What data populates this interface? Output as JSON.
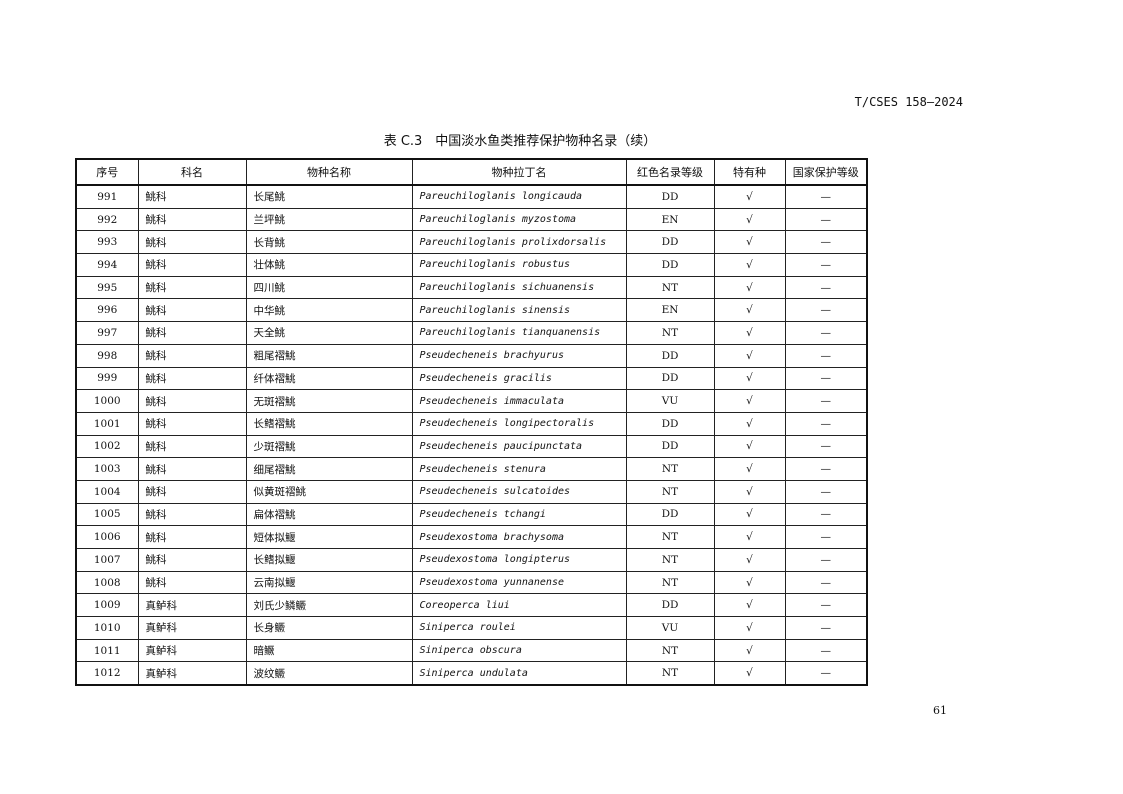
{
  "header": {
    "standard": "T/CSES 158—2024"
  },
  "table": {
    "title": "表 C.3　中国淡水鱼类推荐保护物种名录（续）",
    "columns": [
      "序号",
      "科名",
      "物种名称",
      "物种拉丁名",
      "红色名录等级",
      "特有种",
      "国家保护等级"
    ],
    "rows": [
      [
        "991",
        "鮡科",
        "长尾鮡",
        "Pareuchiloglanis longicauda",
        "DD",
        "√",
        "—"
      ],
      [
        "992",
        "鮡科",
        "兰坪鮡",
        "Pareuchiloglanis myzostoma",
        "EN",
        "√",
        "—"
      ],
      [
        "993",
        "鮡科",
        "长背鮡",
        "Pareuchiloglanis prolixdorsalis",
        "DD",
        "√",
        "—"
      ],
      [
        "994",
        "鮡科",
        "壮体鮡",
        "Pareuchiloglanis robustus",
        "DD",
        "√",
        "—"
      ],
      [
        "995",
        "鮡科",
        "四川鮡",
        "Pareuchiloglanis sichuanensis",
        "NT",
        "√",
        "—"
      ],
      [
        "996",
        "鮡科",
        "中华鮡",
        "Pareuchiloglanis sinensis",
        "EN",
        "√",
        "—"
      ],
      [
        "997",
        "鮡科",
        "天全鮡",
        "Pareuchiloglanis tianquanensis",
        "NT",
        "√",
        "—"
      ],
      [
        "998",
        "鮡科",
        "粗尾褶鮡",
        "Pseudecheneis brachyurus",
        "DD",
        "√",
        "—"
      ],
      [
        "999",
        "鮡科",
        "纤体褶鮡",
        "Pseudecheneis gracilis",
        "DD",
        "√",
        "—"
      ],
      [
        "1000",
        "鮡科",
        "无斑褶鮡",
        "Pseudecheneis immaculata",
        "VU",
        "√",
        "—"
      ],
      [
        "1001",
        "鮡科",
        "长鳍褶鮡",
        "Pseudecheneis longipectoralis",
        "DD",
        "√",
        "—"
      ],
      [
        "1002",
        "鮡科",
        "少斑褶鮡",
        "Pseudecheneis paucipunctata",
        "DD",
        "√",
        "—"
      ],
      [
        "1003",
        "鮡科",
        "细尾褶鮡",
        "Pseudecheneis stenura",
        "NT",
        "√",
        "—"
      ],
      [
        "1004",
        "鮡科",
        "似黄斑褶鮡",
        "Pseudecheneis sulcatoides",
        "NT",
        "√",
        "—"
      ],
      [
        "1005",
        "鮡科",
        "扁体褶鮡",
        "Pseudecheneis tchangi",
        "DD",
        "√",
        "—"
      ],
      [
        "1006",
        "鮡科",
        "短体拟鰋",
        "Pseudexostoma brachysoma",
        "NT",
        "√",
        "—"
      ],
      [
        "1007",
        "鮡科",
        "长鳍拟鰋",
        "Pseudexostoma longipterus",
        "NT",
        "√",
        "—"
      ],
      [
        "1008",
        "鮡科",
        "云南拟鰋",
        "Pseudexostoma yunnanense",
        "NT",
        "√",
        "—"
      ],
      [
        "1009",
        "真鲈科",
        "刘氏少鳞鳜",
        "Coreoperca liui",
        "DD",
        "√",
        "—"
      ],
      [
        "1010",
        "真鲈科",
        "长身鳜",
        "Siniperca roulei",
        "VU",
        "√",
        "—"
      ],
      [
        "1011",
        "真鲈科",
        "暗鳜",
        "Siniperca obscura",
        "NT",
        "√",
        "—"
      ],
      [
        "1012",
        "真鲈科",
        "波纹鳜",
        "Siniperca undulata",
        "NT",
        "√",
        "—"
      ]
    ]
  },
  "footer": {
    "page_number": "61"
  }
}
